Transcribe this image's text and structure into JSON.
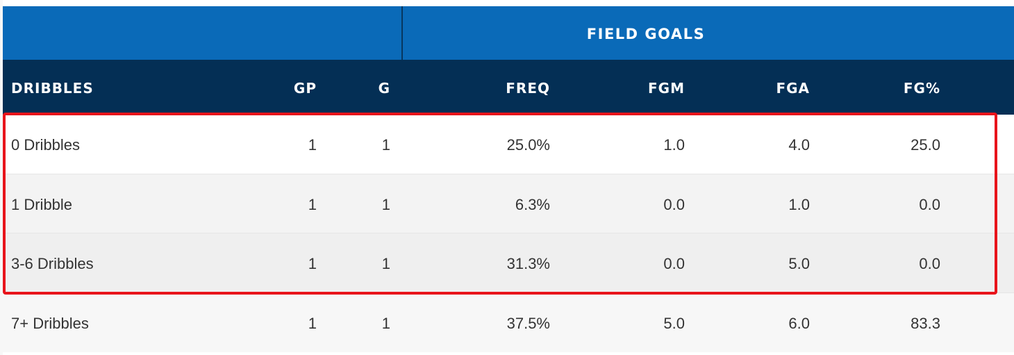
{
  "table": {
    "group_label": "FIELD GOALS",
    "columns": [
      "DRIBBLES",
      "GP",
      "G",
      "FREQ",
      "FGM",
      "FGA",
      "FG%"
    ],
    "rows": [
      {
        "name": "0 Dribbles",
        "gp": "1",
        "g": "1",
        "freq": "25.0%",
        "fgm": "1.0",
        "fga": "4.0",
        "fgp": "25.0"
      },
      {
        "name": "1 Dribble",
        "gp": "1",
        "g": "1",
        "freq": "6.3%",
        "fgm": "0.0",
        "fga": "1.0",
        "fgp": "0.0"
      },
      {
        "name": "3-6 Dribbles",
        "gp": "1",
        "g": "1",
        "freq": "31.3%",
        "fgm": "0.0",
        "fga": "5.0",
        "fgp": "0.0"
      },
      {
        "name": "7+ Dribbles",
        "gp": "1",
        "g": "1",
        "freq": "37.5%",
        "fgm": "5.0",
        "fga": "6.0",
        "fgp": "83.3"
      }
    ],
    "highlighted_rows": [
      "0 Dribbles",
      "1 Dribble",
      "3-6 Dribbles"
    ]
  },
  "colors": {
    "group_header_bg": "#0a6ab8",
    "column_header_bg": "#042f55",
    "highlight_border": "#e8141b",
    "row_alt_bg": "#f3f3f3"
  }
}
